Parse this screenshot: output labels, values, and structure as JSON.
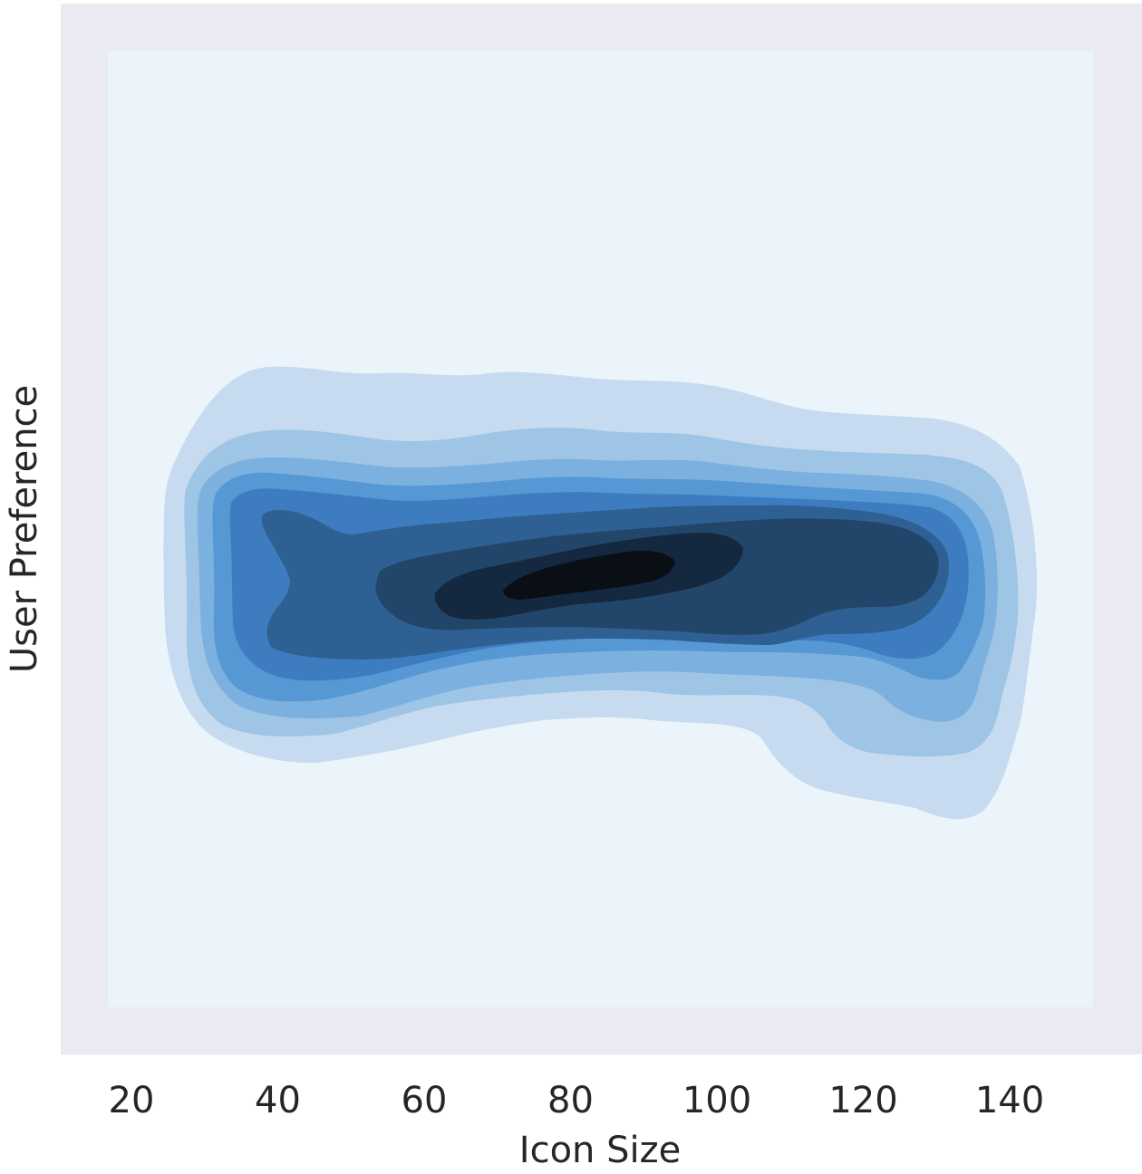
{
  "chart_data": {
    "type": "contour",
    "subtype": "kde-density-filled",
    "title": "",
    "xlabel": "Icon Size",
    "ylabel": "User Preference",
    "xlim": [
      12,
      156
    ],
    "x_ticks": [
      "20",
      "40",
      "60",
      "80",
      "100",
      "120",
      "140"
    ],
    "y_ticks": [],
    "grid": false,
    "levels": 9,
    "density_peak": {
      "x": 82,
      "y_relative": "center"
    },
    "density_extent_x": [
      24,
      145
    ],
    "colors": {
      "figure_background": "#eaeaf2",
      "outer_background": "#ffffff",
      "levels": [
        "#ebf3fb",
        "#c6dbef",
        "#9ec4e6",
        "#7bb0df",
        "#5598d3",
        "#3d7dbf",
        "#2e6093",
        "#22466a",
        "#142840",
        "#0a0f16"
      ]
    }
  }
}
